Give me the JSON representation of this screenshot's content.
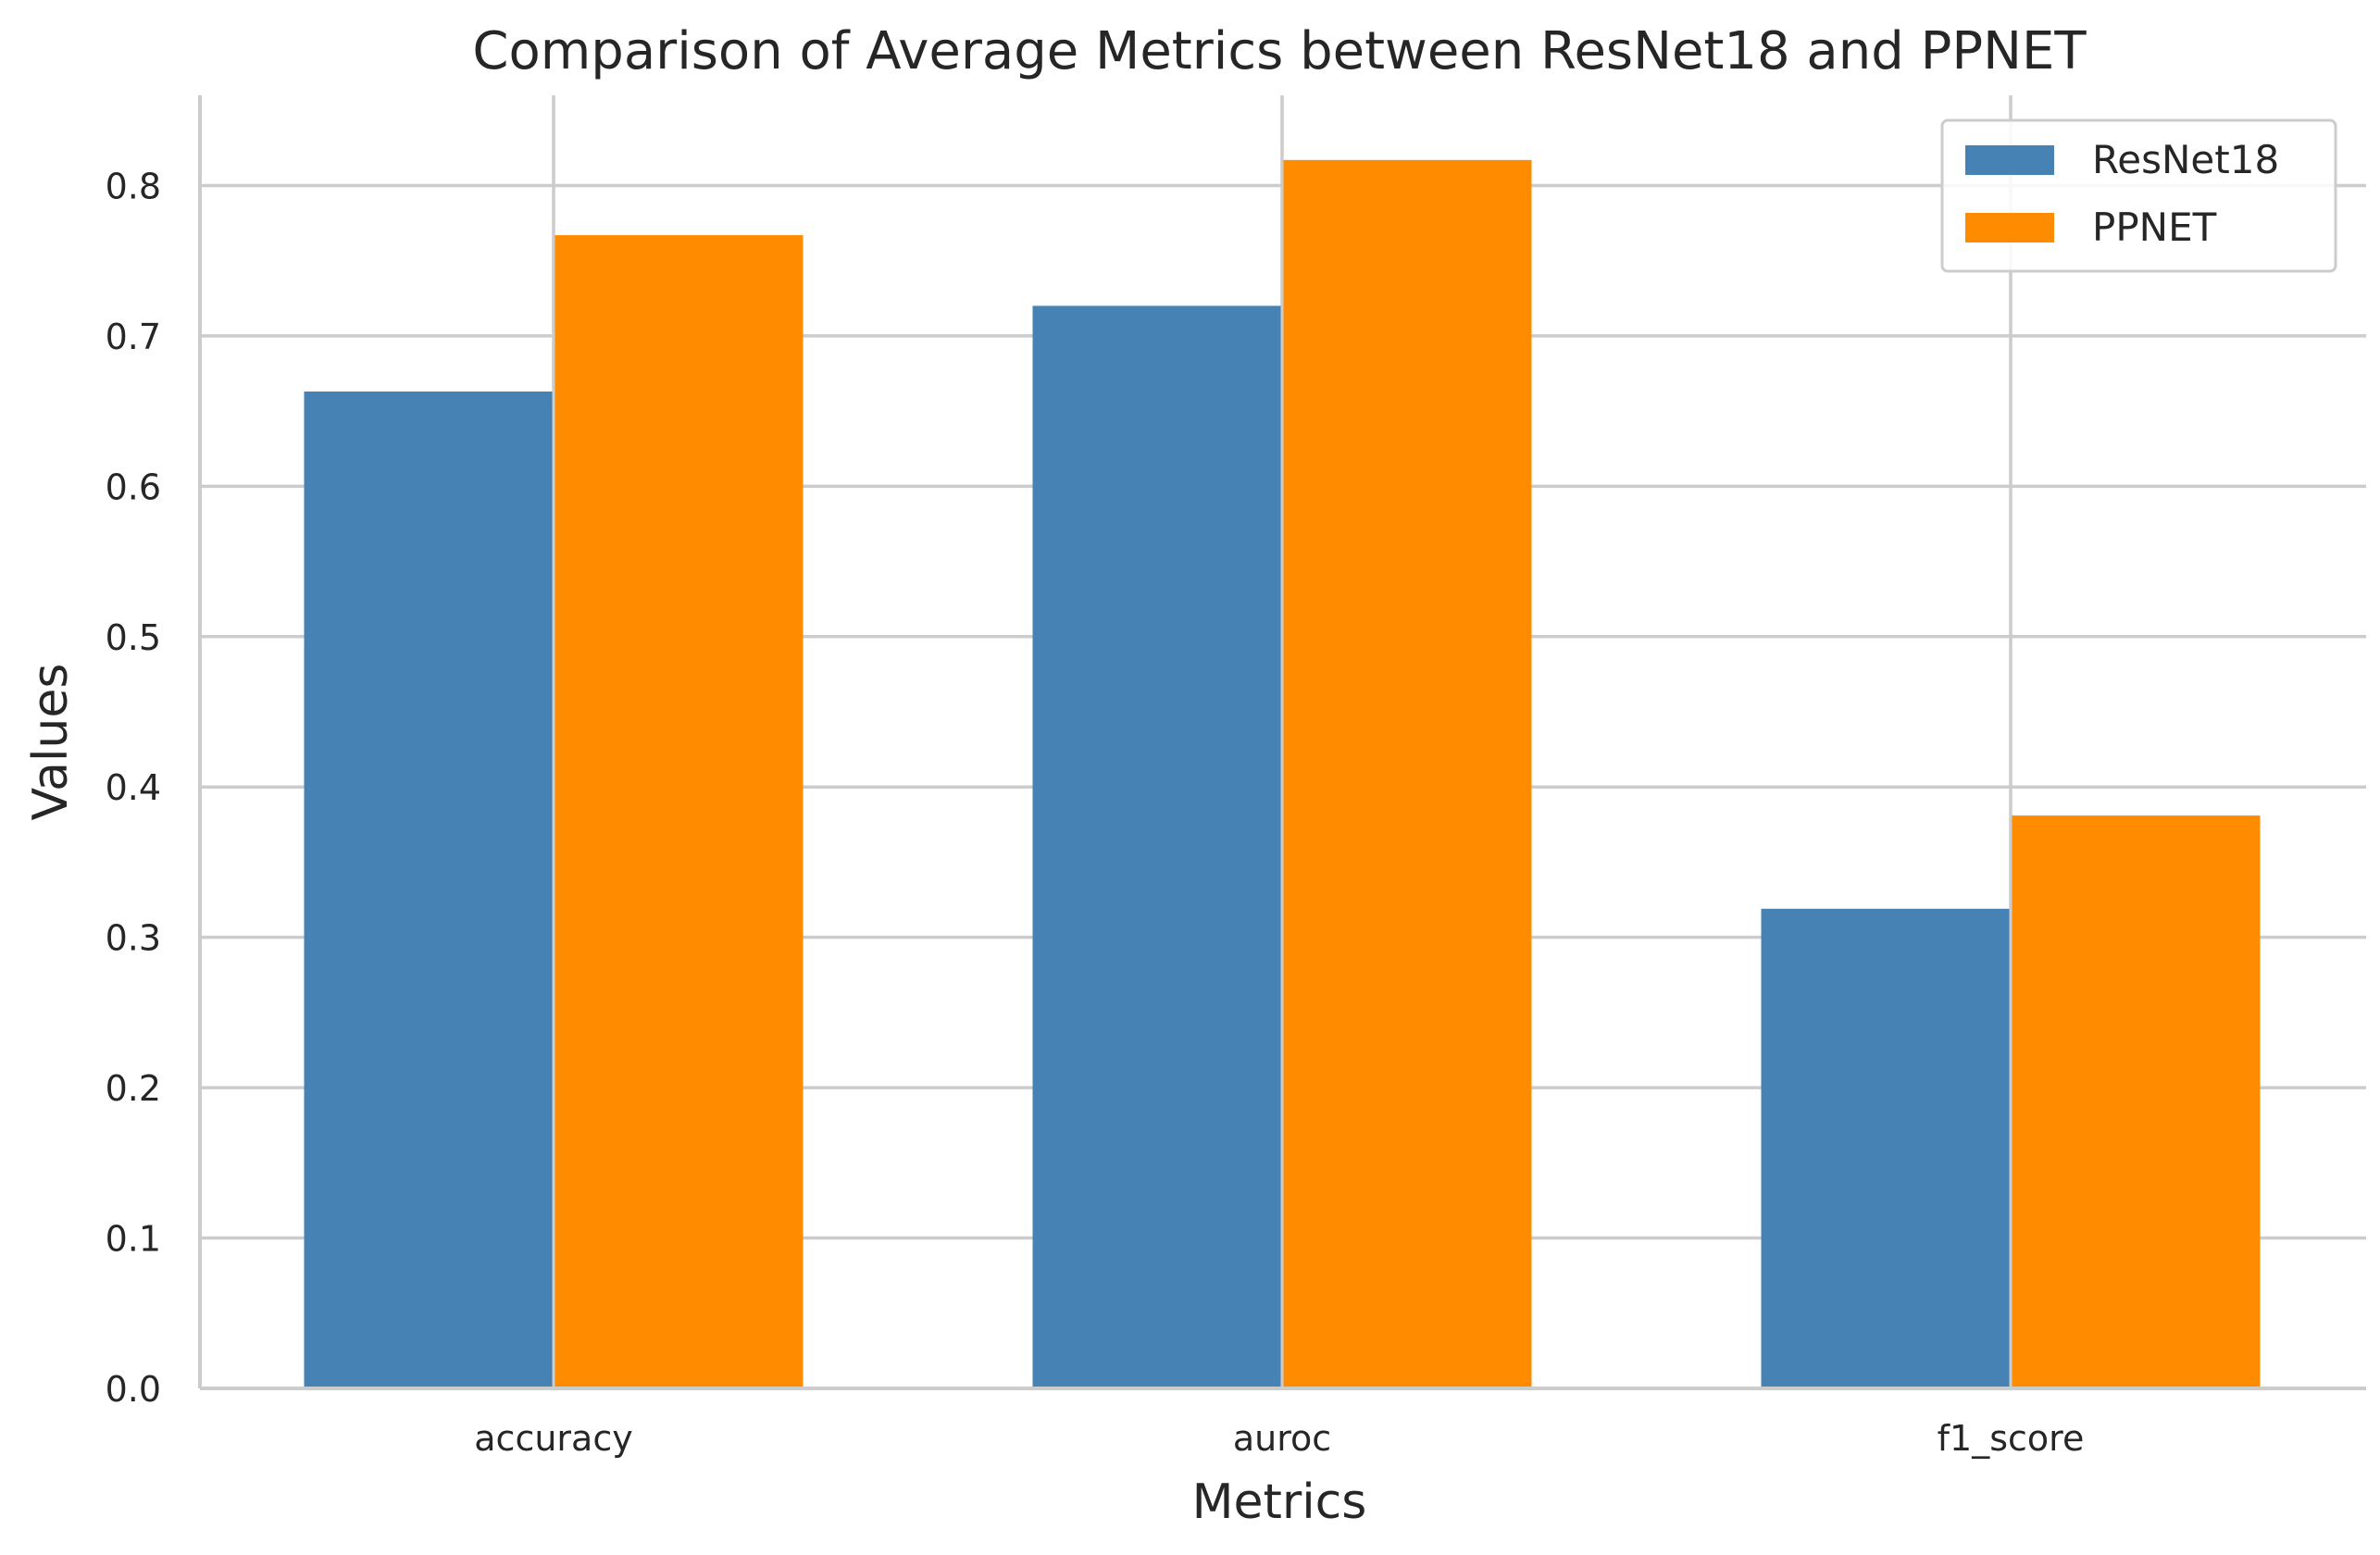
{
  "chart_data": {
    "type": "bar",
    "title": "Comparison of Average Metrics between ResNet18 and PPNET",
    "xlabel": "Metrics",
    "ylabel": "Values",
    "categories": [
      "accuracy",
      "auroc",
      "f1_score"
    ],
    "series": [
      {
        "name": "ResNet18",
        "color": "#4682b4",
        "values": [
          0.663,
          0.72,
          0.319
        ]
      },
      {
        "name": "PPNET",
        "color": "#ff8c00",
        "values": [
          0.767,
          0.817,
          0.381
        ]
      }
    ],
    "ylim": [
      0,
      0.86
    ],
    "yticks": [
      0.0,
      0.1,
      0.2,
      0.3,
      0.4,
      0.5,
      0.6,
      0.7,
      0.8
    ],
    "ytick_labels": [
      "0.0",
      "0.1",
      "0.2",
      "0.3",
      "0.4",
      "0.5",
      "0.6",
      "0.7",
      "0.8"
    ],
    "grid": true,
    "legend_position": "top-right"
  }
}
